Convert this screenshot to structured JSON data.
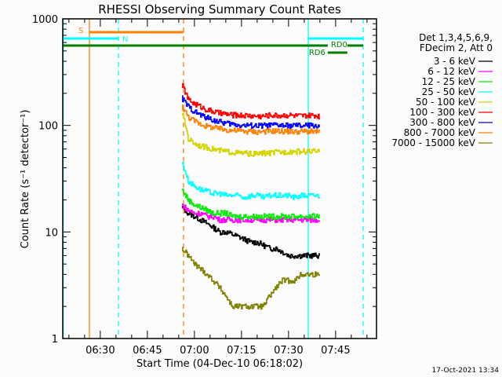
{
  "chart_data": {
    "type": "line",
    "title": "RHESSI Observing Summary Count Rates",
    "xlabel": "Start Time (04-Dec-10 06:18:02)",
    "ylabel": "Count Rate (s⁻¹ detector⁻¹)",
    "xlim": [
      "06:18:02",
      "07:58:02"
    ],
    "ylim": [
      1,
      1000
    ],
    "yscale": "log",
    "x_ticks": [
      "06:30",
      "06:45",
      "07:00",
      "07:15",
      "07:30",
      "07:45"
    ],
    "y_ticks": [
      "1",
      "10",
      "100",
      "1000"
    ],
    "timestamp": "17-Oct-2021 13:34",
    "legend": {
      "position": "right",
      "header": [
        "Det 1,3,4,5,6,9,",
        "FDecim 2, Att 0"
      ]
    },
    "x": [
      "06:56",
      "06:58",
      "07:00",
      "07:02",
      "07:04",
      "07:06",
      "07:08",
      "07:10",
      "07:12",
      "07:14",
      "07:16",
      "07:18",
      "07:20",
      "07:22",
      "07:24",
      "07:26",
      "07:28",
      "07:30",
      "07:32",
      "07:34",
      "07:36",
      "07:38",
      "07:40"
    ],
    "series": [
      {
        "name": "3 - 6 keV",
        "color": "#000000",
        "values": [
          17,
          15,
          14,
          13,
          12,
          11,
          10,
          10,
          9.5,
          9,
          8.5,
          8,
          8,
          7.5,
          7,
          7,
          6.5,
          6,
          6,
          6,
          6,
          6,
          6
        ]
      },
      {
        "name": "6 - 12 keV",
        "color": "#ff00ff",
        "values": [
          18,
          16,
          15,
          15,
          14,
          14,
          13,
          13,
          13,
          13,
          13,
          13,
          13,
          13,
          13,
          13,
          13,
          13,
          13,
          13,
          13,
          13,
          13
        ]
      },
      {
        "name": "12 - 25 keV",
        "color": "#00ee00",
        "values": [
          25,
          20,
          18,
          17,
          16,
          15,
          15,
          15,
          14,
          14,
          14,
          14,
          14,
          14,
          14,
          14,
          14,
          14,
          14,
          14,
          14,
          14,
          14
        ]
      },
      {
        "name": "25 - 50 keV",
        "color": "#00ffff",
        "values": [
          45,
          30,
          27,
          25,
          24,
          23,
          23,
          22,
          22,
          22,
          21,
          22,
          22,
          21,
          22,
          22,
          22,
          22,
          21,
          22,
          22,
          22,
          22
        ]
      },
      {
        "name": "50 - 100 keV",
        "color": "#d4d400",
        "values": [
          130,
          75,
          68,
          64,
          62,
          60,
          58,
          57,
          56,
          55,
          55,
          54,
          54,
          55,
          55,
          56,
          56,
          57,
          57,
          57,
          57,
          57,
          56
        ]
      },
      {
        "name": "100 - 300 keV",
        "color": "#ff0000",
        "values": [
          240,
          175,
          160,
          150,
          140,
          135,
          130,
          128,
          125,
          125,
          124,
          123,
          122,
          122,
          125,
          124,
          124,
          125,
          123,
          122,
          123,
          124,
          122
        ]
      },
      {
        "name": "300 - 800 keV",
        "color": "#0000ff",
        "values": [
          180,
          150,
          135,
          125,
          118,
          112,
          108,
          105,
          103,
          101,
          100,
          100,
          99,
          100,
          100,
          101,
          100,
          99,
          100,
          99,
          100,
          100,
          98
        ]
      },
      {
        "name": "800 - 7000 keV",
        "color": "#ff8000",
        "values": [
          150,
          120,
          110,
          103,
          98,
          95,
          93,
          91,
          90,
          89,
          88,
          88,
          87,
          88,
          88,
          89,
          88,
          88,
          87,
          88,
          88,
          87,
          86
        ]
      },
      {
        "name": "7000 - 15000 keV",
        "color": "#808000",
        "values": [
          7,
          6,
          5,
          4.5,
          4,
          3.5,
          3,
          2.5,
          2,
          2,
          2,
          2,
          2,
          2,
          2.5,
          3,
          3.5,
          3.5,
          3.5,
          4,
          4,
          4,
          4
        ]
      }
    ],
    "vertical_markers": [
      {
        "time": "06:18:10",
        "color": "#00ffff",
        "style": "solid"
      },
      {
        "time": "06:26:32",
        "color": "#ff8000",
        "style": "solid"
      },
      {
        "time": "06:35:47",
        "color": "#00ffff",
        "style": "dashed"
      },
      {
        "time": "06:56:32",
        "color": "#ff8000",
        "style": "dashed"
      },
      {
        "time": "07:36:17",
        "color": "#00ffff",
        "style": "solid"
      },
      {
        "time": "07:53:47",
        "color": "#00ffff",
        "style": "dashed"
      }
    ],
    "flag_bars": [
      {
        "label": "S",
        "color": "#ff8000",
        "level": 0,
        "segments": [
          [
            "06:26:32",
            "06:56:32"
          ]
        ]
      },
      {
        "label": "N",
        "color": "#00ffff",
        "level": 1,
        "segments": [
          [
            "06:18:02",
            "06:35:47"
          ],
          [
            "07:36:17",
            "07:53:47"
          ]
        ]
      },
      {
        "label": "RD0",
        "color": "#008000",
        "level": 2,
        "segments": [
          [
            "06:18:02",
            "07:42:30"
          ],
          [
            "07:48:45",
            "07:53:47"
          ]
        ]
      },
      {
        "label": "RD6",
        "color": "#008000",
        "level": 3,
        "segments": [
          [
            "07:42:30",
            "07:48:45"
          ]
        ]
      }
    ]
  }
}
